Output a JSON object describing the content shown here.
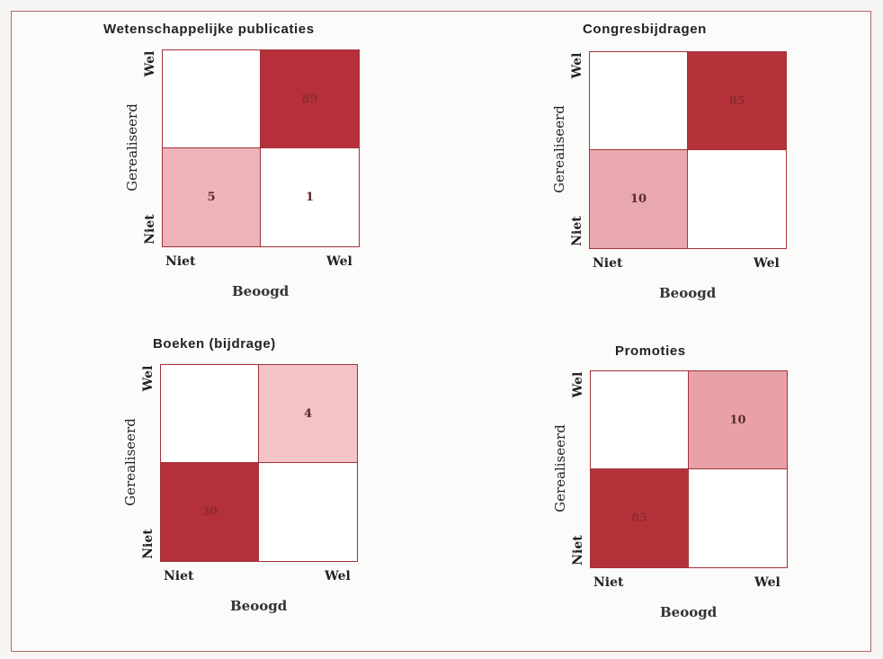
{
  "chart_data": [
    {
      "type": "heatmap",
      "title": "Wetenschappelijke publicaties",
      "xlabel": "Beoogd",
      "ylabel": "Gerealiseerd",
      "x_categories": [
        "Niet",
        "Wel"
      ],
      "y_categories": [
        "Wel",
        "Niet"
      ],
      "values": [
        [
          null,
          89
        ],
        [
          5,
          1
        ]
      ],
      "labels": [
        [
          "",
          "89"
        ],
        [
          "5",
          "1"
        ]
      ],
      "colors": [
        [
          "#ffffff",
          "#b5303a"
        ],
        [
          "#ecb3b9",
          "#ffffff"
        ]
      ]
    },
    {
      "type": "heatmap",
      "title": "Congresbijdragen",
      "xlabel": "Beoogd",
      "ylabel": "Gerealiseerd",
      "x_categories": [
        "Niet",
        "Wel"
      ],
      "y_categories": [
        "Wel",
        "Niet"
      ],
      "values": [
        [
          null,
          85
        ],
        [
          10,
          null
        ]
      ],
      "labels": [
        [
          "",
          "85"
        ],
        [
          "10",
          ""
        ]
      ],
      "colors": [
        [
          "#ffffff",
          "#b6323b"
        ],
        [
          "#e9a8ae",
          "#ffffff"
        ]
      ]
    },
    {
      "type": "heatmap",
      "title": "Boeken (bijdrage)",
      "xlabel": "Beoogd",
      "ylabel": "Gerealiseerd",
      "x_categories": [
        "Niet",
        "Wel"
      ],
      "y_categories": [
        "Wel",
        "Niet"
      ],
      "values": [
        [
          null,
          4
        ],
        [
          30,
          null
        ]
      ],
      "labels": [
        [
          "",
          "4"
        ],
        [
          "30",
          ""
        ]
      ],
      "colors": [
        [
          "#ffffff",
          "#f2c4c8"
        ],
        [
          "#b4303a",
          "#ffffff"
        ]
      ]
    },
    {
      "type": "heatmap",
      "title": "Promoties",
      "xlabel": "Beoogd",
      "ylabel": "Gerealiseerd",
      "x_categories": [
        "Niet",
        "Wel"
      ],
      "y_categories": [
        "Wel",
        "Niet"
      ],
      "values": [
        [
          null,
          10
        ],
        [
          85,
          null
        ]
      ],
      "labels": [
        [
          "",
          "10"
        ],
        [
          "85",
          ""
        ]
      ],
      "colors": [
        [
          "#ffffff",
          "#e8a2a6"
        ],
        [
          "#b6323b",
          "#ffffff"
        ]
      ]
    }
  ]
}
